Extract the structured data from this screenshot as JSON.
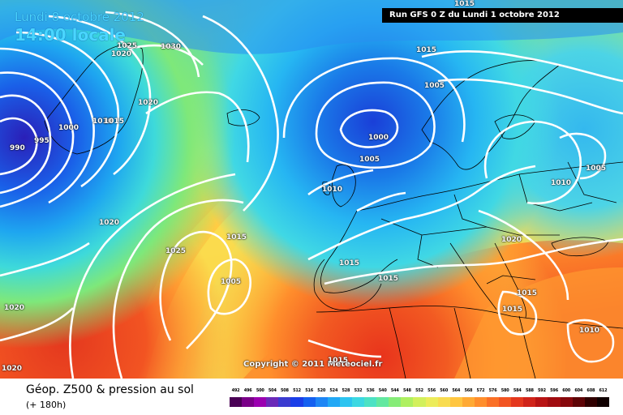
{
  "map": {
    "date_line1": "Lundi 8 octobre 2012",
    "date_line2": "14:00 locale",
    "run_info": "Run GFS 0 Z du Lundi 1 octobre 2012",
    "copyright": "Copyright © 2011 Meteociel.fr",
    "isobar_labels": [
      "1025",
      "1030",
      "1020",
      "1020",
      "1000",
      "1010",
      "1015",
      "990",
      "995",
      "1015",
      "1005",
      "1000",
      "1005",
      "1005",
      "1010",
      "1010",
      "1020",
      "1025",
      "1015",
      "1005",
      "1015",
      "1015",
      "1020",
      "1015",
      "1015",
      "1020",
      "1010",
      "1020",
      "1015",
      "1015"
    ]
  },
  "legend": {
    "title": "Géop. Z500 & pression au sol",
    "subtitle": "(+ 180h)",
    "scale_values": [
      "492",
      "496",
      "500",
      "504",
      "508",
      "512",
      "516",
      "520",
      "524",
      "528",
      "532",
      "536",
      "540",
      "544",
      "548",
      "552",
      "556",
      "560",
      "564",
      "568",
      "572",
      "576",
      "580",
      "584",
      "588",
      "592",
      "596",
      "600",
      "604",
      "608",
      "612"
    ],
    "scale_colors": [
      "#4a0055",
      "#7a0088",
      "#9b00b0",
      "#6b2ab8",
      "#3b3bd0",
      "#1a3ee8",
      "#1460f0",
      "#1e86f5",
      "#22a8f5",
      "#2cc4f0",
      "#3cd8e2",
      "#4ce2c4",
      "#62e8a0",
      "#86ec78",
      "#aef060",
      "#d2f05c",
      "#ecec5a",
      "#f8dc50",
      "#ffc640",
      "#ffaa34",
      "#ff8e2c",
      "#fa7026",
      "#f25422",
      "#e4381e",
      "#d0241a",
      "#b81414",
      "#a00c10",
      "#86080c",
      "#5e0406",
      "#300000",
      "#100000"
    ]
  }
}
